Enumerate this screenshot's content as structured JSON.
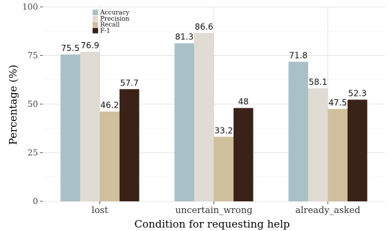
{
  "chart_data": {
    "type": "bar",
    "title": "",
    "xlabel": "Condition for requesting help",
    "ylabel": "Percentage (%)",
    "categories": [
      "lost",
      "uncertain_wrong",
      "already_asked"
    ],
    "ylim": [
      0,
      100
    ],
    "yticks": [
      "0",
      "25",
      "50",
      "75",
      "100"
    ],
    "ytick_values": [
      0,
      25,
      50,
      75,
      100
    ],
    "grid": true,
    "legend_position": "top-left",
    "series": [
      {
        "name": "Accuracy",
        "color": "#a9c0c6",
        "values": [
          75.5,
          81.3,
          71.8
        ],
        "labels": [
          "75.5",
          "81.3",
          "71.8"
        ]
      },
      {
        "name": "Precision",
        "color": "#e0dbd3",
        "values": [
          76.9,
          86.6,
          58.1
        ],
        "labels": [
          "76.9",
          "86.6",
          "58.1"
        ]
      },
      {
        "name": "Recall",
        "color": "#cfbf9c",
        "values": [
          46.2,
          33.2,
          47.5
        ],
        "labels": [
          "46.2",
          "33.2",
          "47.5"
        ]
      },
      {
        "name": "F-1",
        "color": "#3b2219",
        "values": [
          57.7,
          48,
          52.3
        ],
        "labels": [
          "57.7",
          "48",
          "52.3"
        ]
      }
    ]
  }
}
